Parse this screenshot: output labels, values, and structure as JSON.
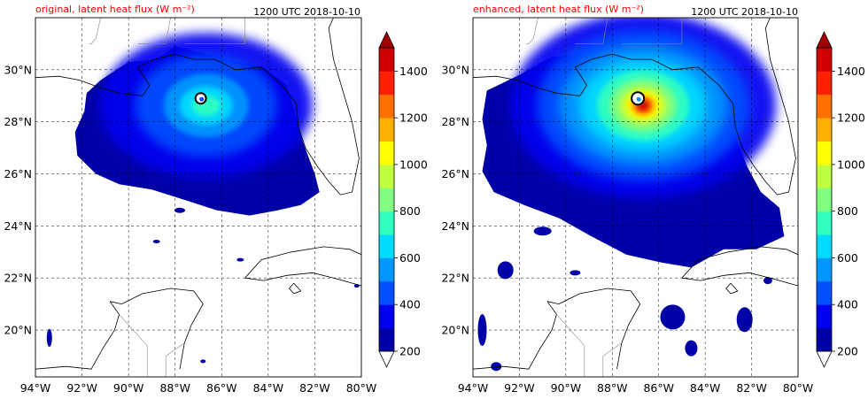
{
  "panels": [
    {
      "title": "original, latent heat flux (W m⁻²)",
      "time": "1200 UTC 2018-10-10",
      "variant": "original"
    },
    {
      "title": "enhanced, latent heat flux (W m⁻²)",
      "time": "1200 UTC 2018-10-10",
      "variant": "enhanced"
    }
  ],
  "axes": {
    "lon_range": [
      -94,
      -80
    ],
    "lat_range": [
      18.2,
      32.0
    ],
    "lon_ticks": [
      -94,
      -92,
      -90,
      -88,
      -86,
      -84,
      -82,
      -80
    ],
    "lon_labels": [
      "94°W",
      "92°W",
      "90°W",
      "88°W",
      "86°W",
      "84°W",
      "82°W",
      "80°W"
    ],
    "lat_ticks": [
      20,
      22,
      24,
      26,
      28,
      30
    ],
    "lat_labels": [
      "20°N",
      "22°N",
      "24°N",
      "26°N",
      "28°N",
      "30°N"
    ]
  },
  "colorbar": {
    "levels": [
      200,
      300,
      400,
      500,
      600,
      700,
      800,
      900,
      1000,
      1100,
      1200,
      1300,
      1400,
      1500
    ],
    "tick_values": [
      200,
      400,
      600,
      800,
      1000,
      1200,
      1400
    ],
    "tick_labels": [
      "200",
      "400",
      "600",
      "800",
      "1000",
      "1200",
      "1400"
    ],
    "colors": [
      "#0000a8",
      "#0000f0",
      "#0050ff",
      "#0098ff",
      "#00dcff",
      "#30ffc0",
      "#80ff80",
      "#c0ff40",
      "#ffff00",
      "#ffb000",
      "#ff7000",
      "#ff2000",
      "#d00000",
      "#a00000"
    ],
    "extend": "both"
  },
  "storm_center": {
    "lon": -86.9,
    "lat": 28.9
  }
}
